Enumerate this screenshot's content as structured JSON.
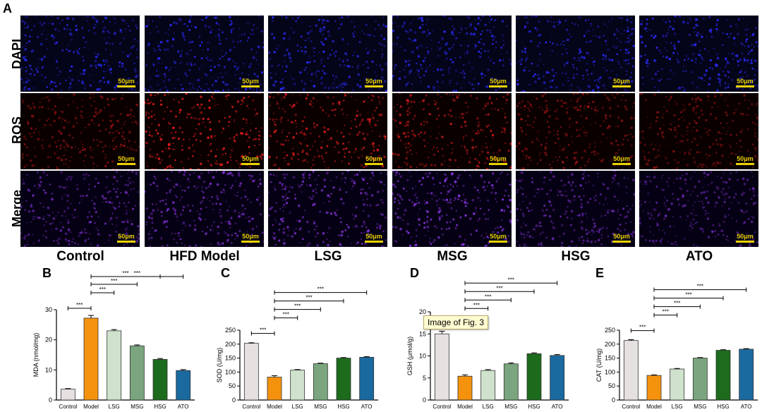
{
  "panel_letters": [
    "A",
    "B",
    "C",
    "D",
    "E"
  ],
  "row_labels": [
    "DAPI",
    "ROS",
    "Merge"
  ],
  "column_labels": [
    "Control",
    "HFD Model",
    "LSG",
    "MSG",
    "HSG",
    "ATO"
  ],
  "scale_bar_label": "50μm",
  "tooltip": "Image of Fig. 3",
  "microscopy_intensity": {
    "ros_fraction": [
      0.3,
      0.95,
      0.75,
      0.6,
      0.35,
      0.22
    ],
    "merge_fraction": [
      0.55,
      0.7,
      0.8,
      0.95,
      0.5,
      0.4
    ]
  },
  "colors": {
    "dapi": "#2b2bff",
    "ros": "#ff2020",
    "merge": "#9a3cff",
    "bar_colors": [
      "#e6e1e1",
      "#f5920d",
      "#cfe2cc",
      "#7aa57e",
      "#1d6b1d",
      "#1a6aa0"
    ],
    "scale_bar": "#e8d200"
  },
  "chart_data": [
    {
      "type": "bar",
      "panel": "B",
      "categories": [
        "Control",
        "Model",
        "LSG",
        "MSG",
        "HSG",
        "ATO"
      ],
      "values": [
        3.6,
        27.2,
        23.0,
        18.0,
        13.5,
        9.8
      ],
      "errors": [
        0.2,
        0.9,
        0.4,
        0.3,
        0.3,
        0.3
      ],
      "ylabel": "MDA (nmol/mg)",
      "ylim": [
        0,
        30
      ],
      "yticks": [
        0,
        10,
        20,
        30
      ],
      "significance": [
        {
          "from": 0,
          "to": 1,
          "label": "***"
        },
        {
          "from": 1,
          "to": 2,
          "label": "***"
        },
        {
          "from": 1,
          "to": 3,
          "label": "***"
        },
        {
          "from": 1,
          "to": 4,
          "label": "***"
        },
        {
          "from": 1,
          "to": 5,
          "label": "***"
        }
      ]
    },
    {
      "type": "bar",
      "panel": "C",
      "categories": [
        "Control",
        "Model",
        "LSG",
        "MSG",
        "HSG",
        "ATO"
      ],
      "values": [
        203,
        82,
        107,
        130,
        150,
        153
      ],
      "errors": [
        2,
        5,
        2,
        2,
        2,
        2
      ],
      "ylabel": "SOD (U/mg)",
      "ylim": [
        0,
        250
      ],
      "yticks": [
        0,
        50,
        100,
        150,
        200,
        250
      ],
      "significance": [
        {
          "from": 0,
          "to": 1,
          "label": "***"
        },
        {
          "from": 1,
          "to": 2,
          "label": "***"
        },
        {
          "from": 1,
          "to": 3,
          "label": "***"
        },
        {
          "from": 1,
          "to": 4,
          "label": "***"
        },
        {
          "from": 1,
          "to": 5,
          "label": "***"
        }
      ]
    },
    {
      "type": "bar",
      "panel": "D",
      "categories": [
        "Control",
        "Model",
        "LSG",
        "MSG",
        "HSG",
        "ATO"
      ],
      "values": [
        15.0,
        5.4,
        6.7,
        8.2,
        10.5,
        10.1
      ],
      "errors": [
        0.6,
        0.3,
        0.2,
        0.2,
        0.2,
        0.2
      ],
      "ylabel": "GSH (μmol/g)",
      "ylim": [
        0,
        20
      ],
      "yticks": [
        0,
        5,
        10,
        15,
        20
      ],
      "significance": [
        {
          "from": 0,
          "to": 1,
          "label": "***"
        },
        {
          "from": 1,
          "to": 2,
          "label": "***"
        },
        {
          "from": 1,
          "to": 3,
          "label": "***"
        },
        {
          "from": 1,
          "to": 4,
          "label": "***"
        },
        {
          "from": 1,
          "to": 5,
          "label": "***"
        }
      ]
    },
    {
      "type": "bar",
      "panel": "E",
      "categories": [
        "Control",
        "Model",
        "LSG",
        "MSG",
        "HSG",
        "ATO"
      ],
      "values": [
        213,
        88,
        111,
        150,
        178,
        182
      ],
      "errors": [
        3,
        2,
        2,
        2,
        2,
        2
      ],
      "ylabel": "CAT (U/mg)",
      "ylim": [
        0,
        250
      ],
      "yticks": [
        0,
        50,
        100,
        150,
        200,
        250
      ],
      "significance": [
        {
          "from": 0,
          "to": 1,
          "label": "***"
        },
        {
          "from": 1,
          "to": 2,
          "label": "***"
        },
        {
          "from": 1,
          "to": 3,
          "label": "***"
        },
        {
          "from": 1,
          "to": 4,
          "label": "***"
        },
        {
          "from": 1,
          "to": 5,
          "label": "***"
        }
      ]
    }
  ]
}
